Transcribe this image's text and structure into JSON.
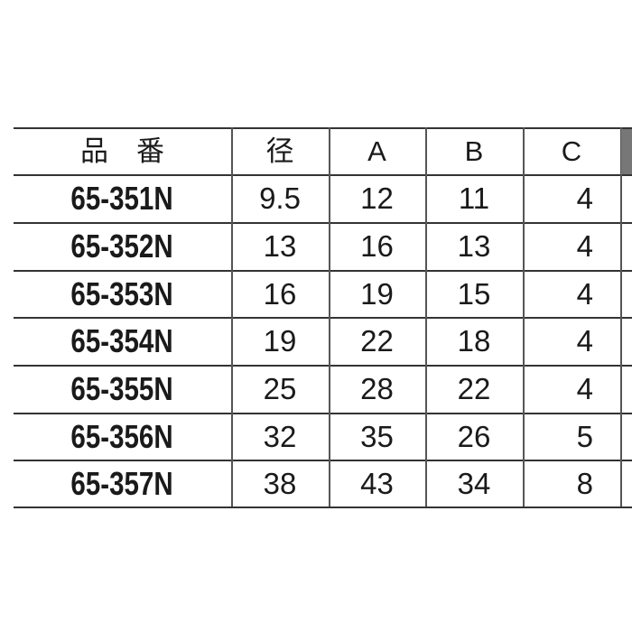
{
  "table": {
    "headers": [
      "品　番",
      "径",
      "A",
      "B",
      "C"
    ],
    "rows": [
      [
        "65-351N",
        "9.5",
        "12",
        "11",
        "4"
      ],
      [
        "65-352N",
        "13",
        "16",
        "13",
        "4"
      ],
      [
        "65-353N",
        "16",
        "19",
        "15",
        "4"
      ],
      [
        "65-354N",
        "19",
        "22",
        "18",
        "4"
      ],
      [
        "65-355N",
        "25",
        "28",
        "22",
        "4"
      ],
      [
        "65-356N",
        "32",
        "35",
        "26",
        "5"
      ],
      [
        "65-357N",
        "38",
        "43",
        "34",
        "8"
      ]
    ]
  }
}
